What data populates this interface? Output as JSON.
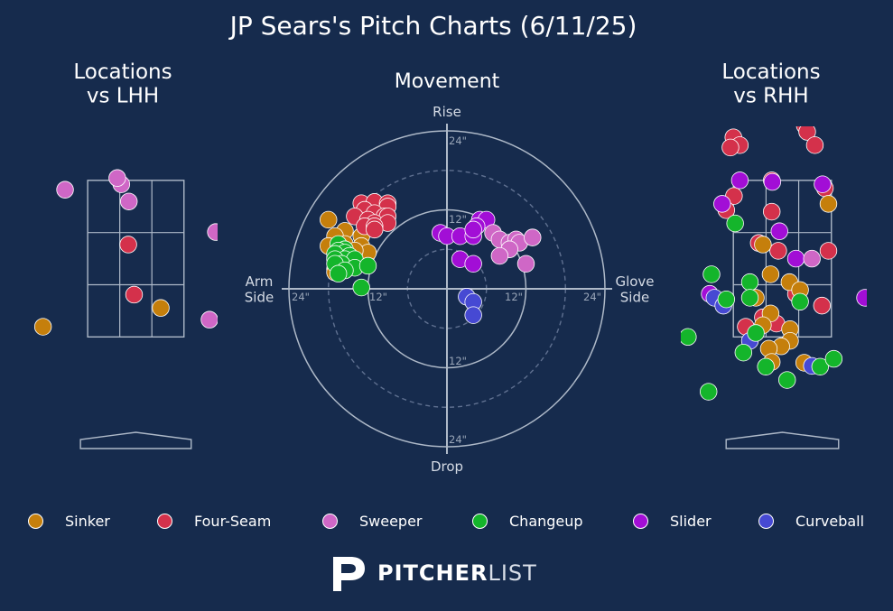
{
  "title": "JP Sears's Pitch Charts (6/11/25)",
  "colors": {
    "background": "#162b4d",
    "Sinker": "#c57f0c",
    "Four-Seam": "#d4314b",
    "Sweeper": "#cf67c6",
    "Changeup": "#14b52b",
    "Slider": "#a20ed6",
    "Curveball": "#4649d3"
  },
  "legend": [
    {
      "name": "Sinker",
      "color": "#c57f0c"
    },
    {
      "name": "Four-Seam",
      "color": "#d4314b"
    },
    {
      "name": "Sweeper",
      "color": "#cf67c6"
    },
    {
      "name": "Changeup",
      "color": "#14b52b"
    },
    {
      "name": "Slider",
      "color": "#a20ed6"
    },
    {
      "name": "Curveball",
      "color": "#4649d3"
    }
  ],
  "branding": {
    "bold": "PITCHER",
    "light": "LIST"
  },
  "chart_data": [
    {
      "type": "scatter",
      "title": "Locations\nvs LHH",
      "xlabel": "",
      "ylabel": "",
      "strike_zone": {
        "x": [
          -0.83,
          0.83
        ],
        "y": [
          1.5,
          3.5
        ],
        "grid": "3x3"
      },
      "xlim": [
        -1.75,
        1.41
      ],
      "ylim": [
        -0.71,
        4.19
      ],
      "points": [
        {
          "pitch": "Sweeper",
          "x": -1.22,
          "y": 3.38
        },
        {
          "pitch": "Sweeper",
          "x": -0.25,
          "y": 3.45
        },
        {
          "pitch": "Sweeper",
          "x": -0.32,
          "y": 3.53
        },
        {
          "pitch": "Sweeper",
          "x": -0.12,
          "y": 3.23
        },
        {
          "pitch": "Sweeper",
          "x": 1.38,
          "y": 2.84
        },
        {
          "pitch": "Sweeper",
          "x": 1.27,
          "y": 1.72
        },
        {
          "pitch": "Four-Seam",
          "x": -0.13,
          "y": 2.68
        },
        {
          "pitch": "Four-Seam",
          "x": -0.03,
          "y": 2.04
        },
        {
          "pitch": "Sinker",
          "x": 0.43,
          "y": 1.87
        },
        {
          "pitch": "Sinker",
          "x": -1.6,
          "y": 1.63
        }
      ]
    },
    {
      "type": "scatter",
      "title": "Movement",
      "xlabel": "",
      "ylabel": "",
      "xlim": [
        -24,
        24
      ],
      "ylim": [
        -24,
        24
      ],
      "axis_labels": {
        "top": "Rise",
        "bottom": "Drop",
        "left": "Arm\nSide",
        "right": "Glove\nSide"
      },
      "ring_labels": [
        "24\"",
        "12\"",
        "12\"",
        "24\"",
        "24\"",
        "12\"",
        "12\"",
        "24\""
      ],
      "points": [
        {
          "pitch": "Sinker",
          "x": -18,
          "y": 10.5
        },
        {
          "pitch": "Sinker",
          "x": -15.5,
          "y": 8.8
        },
        {
          "pitch": "Sinker",
          "x": -17,
          "y": 8
        },
        {
          "pitch": "Sinker",
          "x": -13,
          "y": 8
        },
        {
          "pitch": "Sinker",
          "x": -18,
          "y": 6.5
        },
        {
          "pitch": "Sinker",
          "x": -15.5,
          "y": 6.8
        },
        {
          "pitch": "Sinker",
          "x": -13,
          "y": 6.5
        },
        {
          "pitch": "Sinker",
          "x": -12,
          "y": 5.5
        },
        {
          "pitch": "Sinker",
          "x": -14,
          "y": 5.8
        },
        {
          "pitch": "Sinker",
          "x": -16,
          "y": 5.5
        },
        {
          "pitch": "Sinker",
          "x": -17,
          "y": 4.8
        },
        {
          "pitch": "Sinker",
          "x": -14.5,
          "y": 4.5
        },
        {
          "pitch": "Sinker",
          "x": -16.5,
          "y": 3.8
        },
        {
          "pitch": "Sinker",
          "x": -17,
          "y": 3
        },
        {
          "pitch": "Sinker",
          "x": -17,
          "y": 2.5
        },
        {
          "pitch": "Four-Seam",
          "x": -13,
          "y": 13
        },
        {
          "pitch": "Four-Seam",
          "x": -11,
          "y": 13.2
        },
        {
          "pitch": "Four-Seam",
          "x": -9,
          "y": 13
        },
        {
          "pitch": "Four-Seam",
          "x": -9,
          "y": 12.5
        },
        {
          "pitch": "Four-Seam",
          "x": -12.5,
          "y": 12
        },
        {
          "pitch": "Four-Seam",
          "x": -11,
          "y": 11.5
        },
        {
          "pitch": "Four-Seam",
          "x": -9.5,
          "y": 11
        },
        {
          "pitch": "Four-Seam",
          "x": -14,
          "y": 11
        },
        {
          "pitch": "Four-Seam",
          "x": -12,
          "y": 10.5
        },
        {
          "pitch": "Four-Seam",
          "x": -9,
          "y": 11
        },
        {
          "pitch": "Four-Seam",
          "x": -11,
          "y": 10
        },
        {
          "pitch": "Four-Seam",
          "x": -9,
          "y": 10
        },
        {
          "pitch": "Four-Seam",
          "x": -12.5,
          "y": 9.5
        },
        {
          "pitch": "Four-Seam",
          "x": -11,
          "y": 9.5
        },
        {
          "pitch": "Four-Seam",
          "x": -11,
          "y": 9
        },
        {
          "pitch": "Changeup",
          "x": -16.5,
          "y": 6.8
        },
        {
          "pitch": "Changeup",
          "x": -15.5,
          "y": 6
        },
        {
          "pitch": "Changeup",
          "x": -16.5,
          "y": 5.8
        },
        {
          "pitch": "Changeup",
          "x": -15.5,
          "y": 5.5
        },
        {
          "pitch": "Changeup",
          "x": -17,
          "y": 5.3
        },
        {
          "pitch": "Changeup",
          "x": -14.8,
          "y": 5
        },
        {
          "pitch": "Changeup",
          "x": -15.5,
          "y": 4.5
        },
        {
          "pitch": "Changeup",
          "x": -17,
          "y": 4.5
        },
        {
          "pitch": "Changeup",
          "x": -14,
          "y": 4.5
        },
        {
          "pitch": "Changeup",
          "x": -16,
          "y": 3.8
        },
        {
          "pitch": "Changeup",
          "x": -17,
          "y": 3.8
        },
        {
          "pitch": "Changeup",
          "x": -14,
          "y": 3.2
        },
        {
          "pitch": "Changeup",
          "x": -12,
          "y": 3.5
        },
        {
          "pitch": "Changeup",
          "x": -15.5,
          "y": 2.8
        },
        {
          "pitch": "Changeup",
          "x": -16.5,
          "y": 2.3
        },
        {
          "pitch": "Changeup",
          "x": -13,
          "y": 0.2
        },
        {
          "pitch": "Slider",
          "x": -1,
          "y": 8.5
        },
        {
          "pitch": "Slider",
          "x": 0,
          "y": 8
        },
        {
          "pitch": "Slider",
          "x": 2,
          "y": 8
        },
        {
          "pitch": "Slider",
          "x": 4,
          "y": 8
        },
        {
          "pitch": "Slider",
          "x": 5,
          "y": 10.5
        },
        {
          "pitch": "Slider",
          "x": 6,
          "y": 10.5
        },
        {
          "pitch": "Slider",
          "x": 4.5,
          "y": 9.5
        },
        {
          "pitch": "Slider",
          "x": 4,
          "y": 9
        },
        {
          "pitch": "Slider",
          "x": 2,
          "y": 4.5
        },
        {
          "pitch": "Slider",
          "x": 4,
          "y": 3.8
        },
        {
          "pitch": "Sweeper",
          "x": 7,
          "y": 8.5
        },
        {
          "pitch": "Sweeper",
          "x": 8,
          "y": 7.5
        },
        {
          "pitch": "Sweeper",
          "x": 9.5,
          "y": 7
        },
        {
          "pitch": "Sweeper",
          "x": 10.5,
          "y": 7.5
        },
        {
          "pitch": "Sweeper",
          "x": 11,
          "y": 7
        },
        {
          "pitch": "Sweeper",
          "x": 13,
          "y": 7.8
        },
        {
          "pitch": "Sweeper",
          "x": 9.5,
          "y": 6
        },
        {
          "pitch": "Sweeper",
          "x": 8,
          "y": 5
        },
        {
          "pitch": "Sweeper",
          "x": 12,
          "y": 3.8
        },
        {
          "pitch": "Curveball",
          "x": 3,
          "y": -1.2
        },
        {
          "pitch": "Curveball",
          "x": 4,
          "y": -2
        },
        {
          "pitch": "Curveball",
          "x": 4,
          "y": -4
        }
      ]
    },
    {
      "type": "scatter",
      "title": "Locations\nvs RHH",
      "xlabel": "",
      "ylabel": "",
      "strike_zone": {
        "x": [
          -0.83,
          0.83
        ],
        "y": [
          1.5,
          3.5
        ],
        "grid": "3x3"
      },
      "xlim": [
        -1.72,
        1.43
      ],
      "ylim": [
        -0.71,
        4.19
      ],
      "points": [
        {
          "pitch": "Four-Seam",
          "x": -1.02,
          "y": 4.35
        },
        {
          "pitch": "Four-Seam",
          "x": -0.83,
          "y": 4.05
        },
        {
          "pitch": "Four-Seam",
          "x": -0.72,
          "y": 3.95
        },
        {
          "pitch": "Four-Seam",
          "x": -0.88,
          "y": 3.92
        },
        {
          "pitch": "Four-Seam",
          "x": 0.38,
          "y": 4.2
        },
        {
          "pitch": "Four-Seam",
          "x": 0.42,
          "y": 4.12
        },
        {
          "pitch": "Four-Seam",
          "x": 0.55,
          "y": 3.95
        },
        {
          "pitch": "Four-Seam",
          "x": -0.18,
          "y": 3.5
        },
        {
          "pitch": "Four-Seam",
          "x": 0.72,
          "y": 3.4
        },
        {
          "pitch": "Four-Seam",
          "x": -0.82,
          "y": 3.3
        },
        {
          "pitch": "Four-Seam",
          "x": -0.18,
          "y": 3.1
        },
        {
          "pitch": "Four-Seam",
          "x": -0.95,
          "y": 3.12
        },
        {
          "pitch": "Four-Seam",
          "x": -0.4,
          "y": 2.7
        },
        {
          "pitch": "Four-Seam",
          "x": -0.07,
          "y": 2.6
        },
        {
          "pitch": "Four-Seam",
          "x": 0.78,
          "y": 2.6
        },
        {
          "pitch": "Four-Seam",
          "x": 0.23,
          "y": 2.05
        },
        {
          "pitch": "Four-Seam",
          "x": 0.67,
          "y": 1.9
        },
        {
          "pitch": "Four-Seam",
          "x": -0.33,
          "y": 1.75
        },
        {
          "pitch": "Four-Seam",
          "x": -0.1,
          "y": 1.67
        },
        {
          "pitch": "Four-Seam",
          "x": -0.62,
          "y": 1.63
        },
        {
          "pitch": "Sinker",
          "x": 0.78,
          "y": 3.2
        },
        {
          "pitch": "Sinker",
          "x": -0.33,
          "y": 2.68
        },
        {
          "pitch": "Sinker",
          "x": -0.2,
          "y": 2.3
        },
        {
          "pitch": "Sinker",
          "x": 0.12,
          "y": 2.2
        },
        {
          "pitch": "Sinker",
          "x": 0.3,
          "y": 2.1
        },
        {
          "pitch": "Sinker",
          "x": -0.45,
          "y": 2.0
        },
        {
          "pitch": "Sinker",
          "x": -0.2,
          "y": 1.8
        },
        {
          "pitch": "Sinker",
          "x": 0.13,
          "y": 1.6
        },
        {
          "pitch": "Sinker",
          "x": -0.33,
          "y": 1.65
        },
        {
          "pitch": "Sinker",
          "x": 0.13,
          "y": 1.45
        },
        {
          "pitch": "Sinker",
          "x": -0.02,
          "y": 1.38
        },
        {
          "pitch": "Sinker",
          "x": -0.23,
          "y": 1.35
        },
        {
          "pitch": "Sinker",
          "x": -0.18,
          "y": 1.18
        },
        {
          "pitch": "Sinker",
          "x": 0.37,
          "y": 1.17
        },
        {
          "pitch": "Slider",
          "x": -0.72,
          "y": 3.5
        },
        {
          "pitch": "Slider",
          "x": -0.17,
          "y": 3.48
        },
        {
          "pitch": "Slider",
          "x": 0.68,
          "y": 3.45
        },
        {
          "pitch": "Slider",
          "x": -1.02,
          "y": 3.2
        },
        {
          "pitch": "Slider",
          "x": -0.05,
          "y": 2.85
        },
        {
          "pitch": "Slider",
          "x": 0.23,
          "y": 2.5
        },
        {
          "pitch": "Slider",
          "x": -1.23,
          "y": 2.05
        },
        {
          "pitch": "Slider",
          "x": 1.4,
          "y": 2.0
        },
        {
          "pitch": "Sweeper",
          "x": 0.5,
          "y": 2.5
        },
        {
          "pitch": "Curveball",
          "x": -1.15,
          "y": 2.0
        },
        {
          "pitch": "Curveball",
          "x": -1.0,
          "y": 1.9
        },
        {
          "pitch": "Curveball",
          "x": -0.55,
          "y": 1.45
        },
        {
          "pitch": "Curveball",
          "x": 0.5,
          "y": 1.13
        },
        {
          "pitch": "Changeup",
          "x": -0.8,
          "y": 2.95
        },
        {
          "pitch": "Changeup",
          "x": -0.55,
          "y": 2.2
        },
        {
          "pitch": "Changeup",
          "x": -1.2,
          "y": 2.3
        },
        {
          "pitch": "Changeup",
          "x": -0.95,
          "y": 1.98
        },
        {
          "pitch": "Changeup",
          "x": -0.45,
          "y": 1.55
        },
        {
          "pitch": "Changeup",
          "x": -0.55,
          "y": 2.0
        },
        {
          "pitch": "Changeup",
          "x": 0.3,
          "y": 1.95
        },
        {
          "pitch": "Changeup",
          "x": -1.6,
          "y": 1.5
        },
        {
          "pitch": "Changeup",
          "x": -0.66,
          "y": 1.3
        },
        {
          "pitch": "Changeup",
          "x": -0.28,
          "y": 1.12
        },
        {
          "pitch": "Changeup",
          "x": 0.08,
          "y": 0.95
        },
        {
          "pitch": "Changeup",
          "x": 0.64,
          "y": 1.12
        },
        {
          "pitch": "Changeup",
          "x": 0.87,
          "y": 1.22
        },
        {
          "pitch": "Changeup",
          "x": -1.25,
          "y": 0.8
        }
      ]
    }
  ]
}
